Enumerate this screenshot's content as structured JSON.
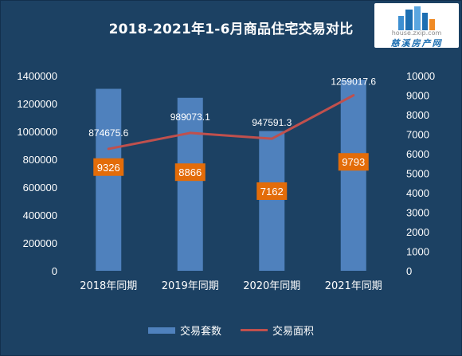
{
  "chart_data": {
    "type": "bar",
    "title": "2018-2021年1-6月商品住宅交易对比",
    "categories": [
      "2018年同期",
      "2019年同期",
      "2020年同期",
      "2021年同期"
    ],
    "series": [
      {
        "name": "交易套数",
        "type": "bar",
        "axis": "left",
        "color": "#4f81bd",
        "values": [
          9326,
          8866,
          7162,
          9793
        ],
        "labels": [
          "9326",
          "8866",
          "7162",
          "9793"
        ]
      },
      {
        "name": "交易面积",
        "type": "line",
        "axis": "right",
        "color": "#c0504d",
        "values": [
          874675.6,
          989073.1,
          947591.3,
          1259017.6
        ],
        "labels": [
          "874675.6",
          "989073.1",
          "947591.3",
          "1259017.6"
        ]
      }
    ],
    "y_left": {
      "range": [
        0,
        10000
      ],
      "ticks": [
        "0",
        "1000",
        "2000",
        "3000",
        "4000",
        "5000",
        "6000",
        "7000",
        "8000",
        "9000",
        "10000"
      ]
    },
    "y_right": {
      "range": [
        0,
        1400000
      ],
      "ticks": [
        "0",
        "200000",
        "400000",
        "600000",
        "800000",
        "1000000",
        "1200000",
        "1400000"
      ]
    },
    "label_color": "#e36c09",
    "grid": false,
    "legend_position": "bottom"
  },
  "watermark": {
    "url": "house.zxip.com",
    "name": "慈溪房产网"
  }
}
